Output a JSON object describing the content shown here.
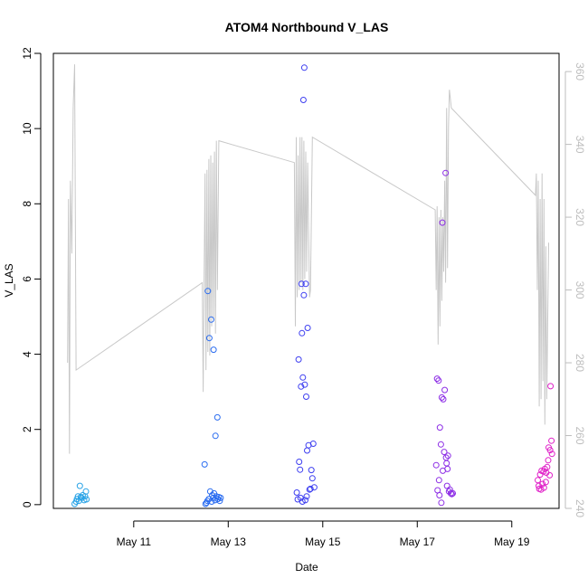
{
  "chart_data": {
    "type": "scatter",
    "title": "ATOM4 Northbound V_LAS",
    "xlabel": "Date",
    "ylabel": "V_LAS",
    "x_unit": "date (May 2020, fractional day of month)",
    "xlim": [
      9.3,
      20.0
    ],
    "ylim": [
      -0.1,
      12.0
    ],
    "x_ticks": [
      {
        "value": 11,
        "label": "May 11"
      },
      {
        "value": 13,
        "label": "May 13"
      },
      {
        "value": 15,
        "label": "May 15"
      },
      {
        "value": 17,
        "label": "May 17"
      },
      {
        "value": 19,
        "label": "May 19"
      }
    ],
    "y_ticks": [
      {
        "value": 0,
        "label": "0"
      },
      {
        "value": 2,
        "label": "2"
      },
      {
        "value": 4,
        "label": "4"
      },
      {
        "value": 6,
        "label": "6"
      },
      {
        "value": 8,
        "label": "8"
      },
      {
        "value": 10,
        "label": "10"
      },
      {
        "value": 12,
        "label": "12"
      }
    ],
    "y2lim": [
      240,
      365
    ],
    "y2_ticks": [
      {
        "value": 240,
        "label": "240"
      },
      {
        "value": 260,
        "label": "260"
      },
      {
        "value": 280,
        "label": "280"
      },
      {
        "value": 300,
        "label": "300"
      },
      {
        "value": 320,
        "label": "320"
      },
      {
        "value": 340,
        "label": "340"
      },
      {
        "value": 360,
        "label": "360"
      }
    ],
    "grid": false,
    "legend": "none",
    "series": [
      {
        "kind": "scatter",
        "color": "#29a3e6",
        "points": [
          [
            9.75,
            0.02
          ],
          [
            9.78,
            0.08
          ],
          [
            9.8,
            0.15
          ],
          [
            9.82,
            0.22
          ],
          [
            9.84,
            0.1
          ],
          [
            9.86,
            0.5
          ],
          [
            9.88,
            0.2
          ],
          [
            9.9,
            0.18
          ],
          [
            9.92,
            0.25
          ],
          [
            9.95,
            0.12
          ],
          [
            9.97,
            0.22
          ],
          [
            9.99,
            0.35
          ],
          [
            10.0,
            0.14
          ]
        ]
      },
      {
        "kind": "scatter",
        "color": "#2a6cf0",
        "points": [
          [
            12.5,
            1.07
          ],
          [
            12.52,
            0.02
          ],
          [
            12.54,
            0.05
          ],
          [
            12.56,
            0.1
          ],
          [
            12.57,
            5.68
          ],
          [
            12.59,
            0.15
          ],
          [
            12.6,
            4.43
          ],
          [
            12.62,
            0.35
          ],
          [
            12.64,
            4.92
          ],
          [
            12.65,
            0.08
          ],
          [
            12.66,
            0.25
          ],
          [
            12.68,
            0.18
          ],
          [
            12.69,
            4.12
          ],
          [
            12.7,
            0.3
          ],
          [
            12.72,
            0.12
          ],
          [
            12.73,
            1.83
          ],
          [
            12.75,
            0.22
          ],
          [
            12.77,
            2.32
          ],
          [
            12.78,
            0.15
          ],
          [
            12.8,
            0.2
          ],
          [
            12.82,
            0.1
          ],
          [
            12.84,
            0.18
          ]
        ]
      },
      {
        "kind": "scatter",
        "color": "#3d3ef0",
        "points": [
          [
            14.45,
            0.32
          ],
          [
            14.47,
            0.14
          ],
          [
            14.49,
            3.86
          ],
          [
            14.5,
            1.14
          ],
          [
            14.52,
            0.93
          ],
          [
            14.53,
            0.18
          ],
          [
            14.54,
            3.14
          ],
          [
            14.55,
            5.87
          ],
          [
            14.56,
            4.56
          ],
          [
            14.57,
            0.08
          ],
          [
            14.58,
            3.38
          ],
          [
            14.59,
            10.76
          ],
          [
            14.6,
            5.57
          ],
          [
            14.61,
            11.62
          ],
          [
            14.62,
            3.19
          ],
          [
            14.63,
            0.12
          ],
          [
            14.64,
            5.87
          ],
          [
            14.65,
            2.87
          ],
          [
            14.66,
            0.22
          ],
          [
            14.67,
            1.44
          ],
          [
            14.68,
            4.7
          ],
          [
            14.7,
            1.58
          ],
          [
            14.72,
            0.4
          ],
          [
            14.74,
            0.42
          ],
          [
            14.76,
            0.92
          ],
          [
            14.78,
            0.7
          ],
          [
            14.8,
            1.62
          ],
          [
            14.82,
            0.46
          ]
        ]
      },
      {
        "kind": "scatter",
        "color": "#8d2ee6",
        "points": [
          [
            17.4,
            1.05
          ],
          [
            17.42,
            3.35
          ],
          [
            17.43,
            0.38
          ],
          [
            17.45,
            3.3
          ],
          [
            17.46,
            0.65
          ],
          [
            17.47,
            0.25
          ],
          [
            17.48,
            2.05
          ],
          [
            17.5,
            1.6
          ],
          [
            17.51,
            0.05
          ],
          [
            17.52,
            2.85
          ],
          [
            17.53,
            7.5
          ],
          [
            17.54,
            0.9
          ],
          [
            17.55,
            2.8
          ],
          [
            17.57,
            1.4
          ],
          [
            17.58,
            3.05
          ],
          [
            17.6,
            8.82
          ],
          [
            17.61,
            1.25
          ],
          [
            17.62,
            1.1
          ],
          [
            17.63,
            0.5
          ],
          [
            17.64,
            0.95
          ],
          [
            17.65,
            1.3
          ],
          [
            17.67,
            0.35
          ],
          [
            17.69,
            0.4
          ],
          [
            17.71,
            0.3
          ],
          [
            17.73,
            0.28
          ],
          [
            17.75,
            0.3
          ]
        ]
      },
      {
        "kind": "scatter",
        "color": "#e021c8",
        "points": [
          [
            19.55,
            0.65
          ],
          [
            19.57,
            0.5
          ],
          [
            19.58,
            0.42
          ],
          [
            19.6,
            0.8
          ],
          [
            19.62,
            0.4
          ],
          [
            19.63,
            0.9
          ],
          [
            19.65,
            0.55
          ],
          [
            19.67,
            0.88
          ],
          [
            19.68,
            0.45
          ],
          [
            19.7,
            0.95
          ],
          [
            19.72,
            0.6
          ],
          [
            19.73,
            0.85
          ],
          [
            19.75,
            1.0
          ],
          [
            19.77,
            1.18
          ],
          [
            19.78,
            1.52
          ],
          [
            19.8,
            0.78
          ],
          [
            19.81,
            1.45
          ],
          [
            19.82,
            3.15
          ],
          [
            19.84,
            1.7
          ],
          [
            19.85,
            1.35
          ]
        ]
      },
      {
        "kind": "line",
        "axis": "right",
        "color": "#c8c8c8",
        "points": [
          [
            9.6,
            280
          ],
          [
            9.62,
            325
          ],
          [
            9.64,
            255
          ],
          [
            9.66,
            330
          ],
          [
            9.69,
            310
          ],
          [
            9.72,
            350
          ],
          [
            9.75,
            362
          ],
          [
            9.78,
            278
          ],
          [
            12.45,
            302
          ],
          [
            12.47,
            272
          ],
          [
            12.49,
            305
          ],
          [
            12.51,
            332
          ],
          [
            12.53,
            278
          ],
          [
            12.55,
            333
          ],
          [
            12.57,
            283
          ],
          [
            12.59,
            336
          ],
          [
            12.61,
            282
          ],
          [
            12.63,
            337
          ],
          [
            12.65,
            290
          ],
          [
            12.67,
            335
          ],
          [
            12.69,
            292
          ],
          [
            12.71,
            338
          ],
          [
            12.73,
            288
          ],
          [
            12.75,
            341
          ],
          [
            12.77,
            300
          ],
          [
            12.8,
            341
          ],
          [
            14.4,
            335
          ],
          [
            14.42,
            290
          ],
          [
            14.44,
            342
          ],
          [
            14.46,
            298
          ],
          [
            14.48,
            337
          ],
          [
            14.5,
            300
          ],
          [
            14.52,
            342
          ],
          [
            14.54,
            302
          ],
          [
            14.56,
            342
          ],
          [
            14.58,
            300
          ],
          [
            14.6,
            341
          ],
          [
            14.62,
            303
          ],
          [
            14.64,
            338
          ],
          [
            14.66,
            305
          ],
          [
            14.68,
            335
          ],
          [
            14.72,
            298
          ],
          [
            14.74,
            300
          ],
          [
            14.78,
            342
          ],
          [
            17.38,
            322
          ],
          [
            17.4,
            300
          ],
          [
            17.42,
            323
          ],
          [
            17.44,
            285
          ],
          [
            17.46,
            320
          ],
          [
            17.48,
            290
          ],
          [
            17.5,
            322
          ],
          [
            17.52,
            297
          ],
          [
            17.54,
            320
          ],
          [
            17.56,
            305
          ],
          [
            17.58,
            330
          ],
          [
            17.6,
            302
          ],
          [
            17.62,
            350
          ],
          [
            17.64,
            306
          ],
          [
            17.66,
            345
          ],
          [
            17.68,
            355
          ],
          [
            17.72,
            350
          ],
          [
            19.5,
            326
          ],
          [
            19.52,
            332
          ],
          [
            19.54,
            300
          ],
          [
            19.56,
            330
          ],
          [
            19.58,
            268
          ],
          [
            19.6,
            325
          ],
          [
            19.62,
            270
          ],
          [
            19.64,
            332
          ],
          [
            19.66,
            275
          ],
          [
            19.68,
            325
          ],
          [
            19.7,
            263
          ],
          [
            19.72,
            312
          ],
          [
            19.74,
            270
          ],
          [
            19.78,
            313
          ]
        ]
      }
    ]
  }
}
